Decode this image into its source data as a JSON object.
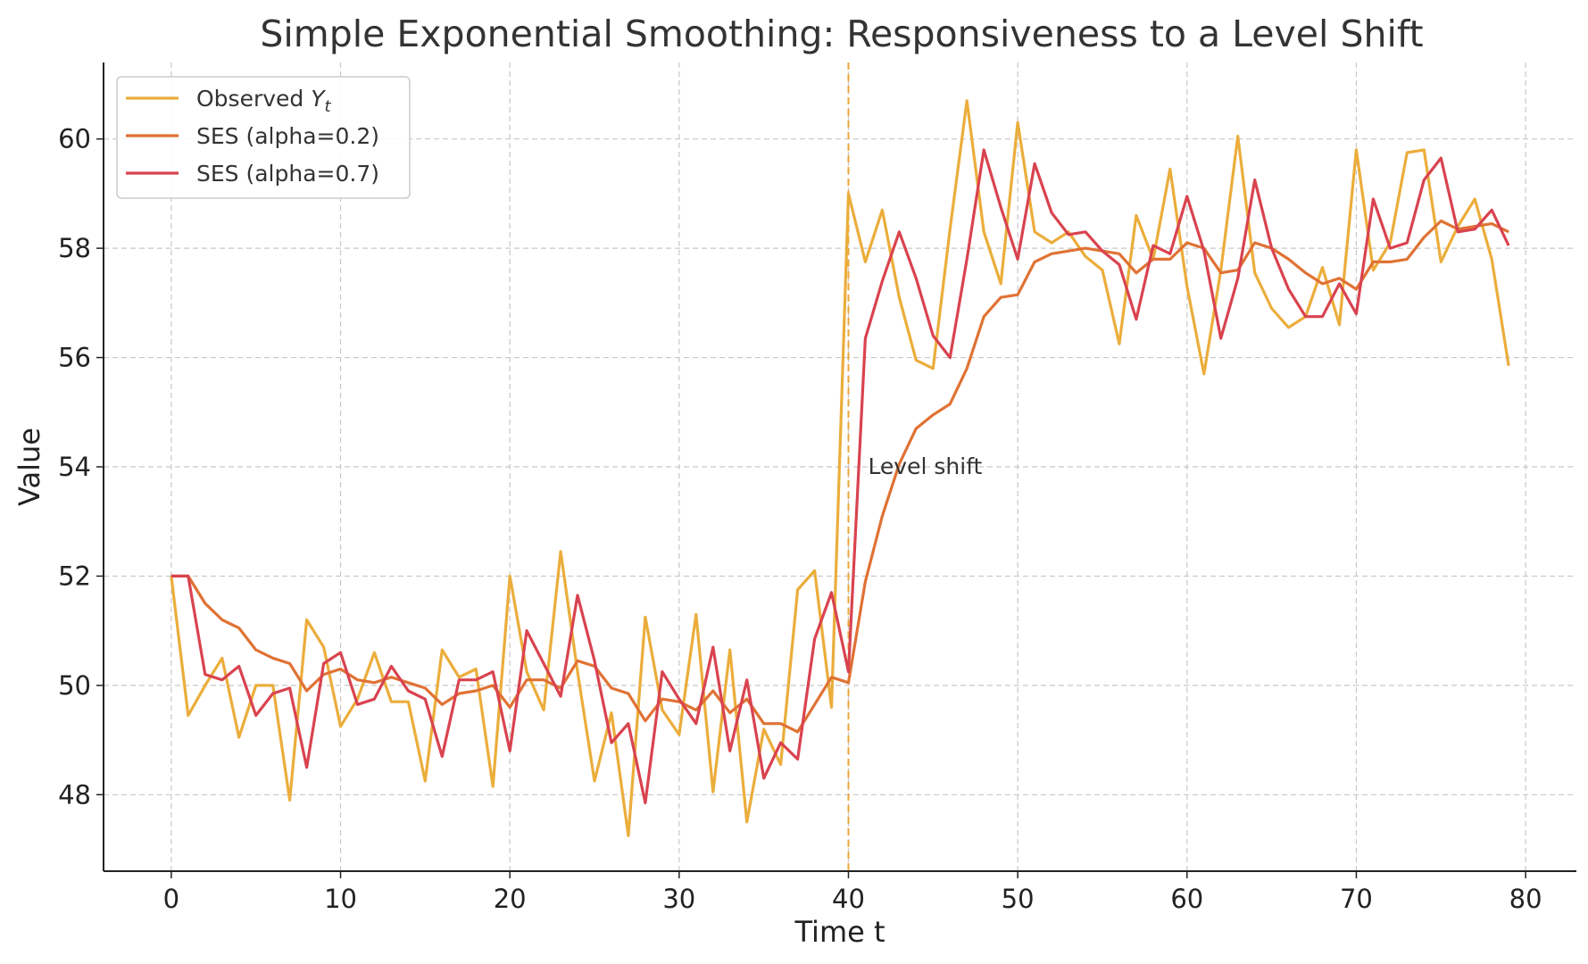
{
  "chart_data": {
    "type": "line",
    "title": "Simple Exponential Smoothing: Responsiveness to a Level Shift",
    "xlabel": "Time t",
    "ylabel": "Value",
    "xlim": [
      -4,
      83
    ],
    "ylim": [
      46.6,
      61.4
    ],
    "xticks": [
      0,
      10,
      20,
      30,
      40,
      50,
      60,
      70,
      80
    ],
    "yticks": [
      48,
      50,
      52,
      54,
      56,
      58,
      60
    ],
    "grid": true,
    "legend_position": "top-left",
    "annotation": {
      "text": "Level shift",
      "x": 41,
      "y": 54
    },
    "vline": {
      "x": 40,
      "color": "#EBA83A"
    },
    "series": [
      {
        "name": "Observed Y",
        "name_subscript": "t",
        "color": "#EBAD3B",
        "values": [
          52.0,
          49.45,
          50.0,
          50.5,
          49.05,
          50.0,
          50.0,
          47.9,
          51.2,
          50.7,
          49.25,
          49.75,
          50.6,
          49.7,
          49.7,
          48.25,
          50.65,
          50.15,
          50.3,
          48.15,
          52.0,
          50.25,
          49.55,
          52.45,
          50.25,
          48.25,
          49.5,
          47.25,
          51.25,
          49.55,
          49.1,
          51.3,
          48.05,
          50.65,
          47.5,
          49.2,
          48.55,
          51.75,
          52.1,
          49.6,
          59.0,
          57.75,
          58.7,
          57.1,
          55.95,
          55.8,
          58.35,
          60.7,
          58.3,
          57.35,
          60.3,
          58.3,
          58.1,
          58.3,
          57.85,
          57.6,
          56.25,
          58.6,
          57.8,
          59.45,
          57.3,
          55.7,
          57.6,
          60.05,
          57.55,
          56.9,
          56.55,
          56.75,
          57.65,
          56.6,
          59.8,
          57.6,
          58.1,
          59.75,
          59.8,
          57.75,
          58.4,
          58.9,
          57.8,
          55.85
        ]
      },
      {
        "name": "SES (alpha=0.2)",
        "color": "#E07234",
        "values": [
          52.0,
          52.0,
          51.5,
          51.2,
          51.05,
          50.65,
          50.5,
          50.4,
          49.9,
          50.2,
          50.3,
          50.1,
          50.05,
          50.15,
          50.05,
          49.95,
          49.65,
          49.85,
          49.9,
          50.0,
          49.6,
          50.1,
          50.1,
          49.95,
          50.45,
          50.35,
          49.95,
          49.85,
          49.35,
          49.75,
          49.7,
          49.55,
          49.9,
          49.5,
          49.75,
          49.3,
          49.3,
          49.15,
          49.65,
          50.15,
          50.05,
          51.9,
          53.1,
          54.05,
          54.7,
          54.95,
          55.15,
          55.8,
          56.75,
          57.1,
          57.15,
          57.75,
          57.9,
          57.95,
          58.0,
          57.95,
          57.9,
          57.55,
          57.8,
          57.8,
          58.1,
          58.0,
          57.55,
          57.6,
          58.1,
          58.0,
          57.8,
          57.55,
          57.35,
          57.45,
          57.25,
          57.75,
          57.75,
          57.8,
          58.2,
          58.5,
          58.35,
          58.4,
          58.45,
          58.3
        ]
      },
      {
        "name": "SES (alpha=0.7)",
        "color": "#D9434F",
        "values": [
          52.0,
          52.0,
          50.2,
          50.1,
          50.35,
          49.45,
          49.85,
          49.95,
          48.5,
          50.4,
          50.6,
          49.65,
          49.75,
          50.35,
          49.9,
          49.75,
          48.7,
          50.1,
          50.1,
          50.25,
          48.8,
          51.0,
          50.4,
          49.8,
          51.65,
          50.45,
          48.95,
          49.3,
          47.85,
          50.25,
          49.75,
          49.3,
          50.7,
          48.8,
          50.1,
          48.3,
          48.95,
          48.65,
          50.85,
          51.7,
          50.25,
          56.35,
          57.4,
          58.3,
          57.45,
          56.4,
          56.0,
          57.8,
          59.8,
          58.75,
          57.8,
          59.55,
          58.65,
          58.25,
          58.3,
          57.95,
          57.7,
          56.7,
          58.05,
          57.9,
          58.95,
          57.95,
          56.35,
          57.45,
          59.25,
          58.0,
          57.25,
          56.75,
          56.75,
          57.35,
          56.8,
          58.9,
          58.0,
          58.1,
          59.25,
          59.65,
          58.3,
          58.35,
          58.7,
          58.05
        ]
      }
    ]
  }
}
